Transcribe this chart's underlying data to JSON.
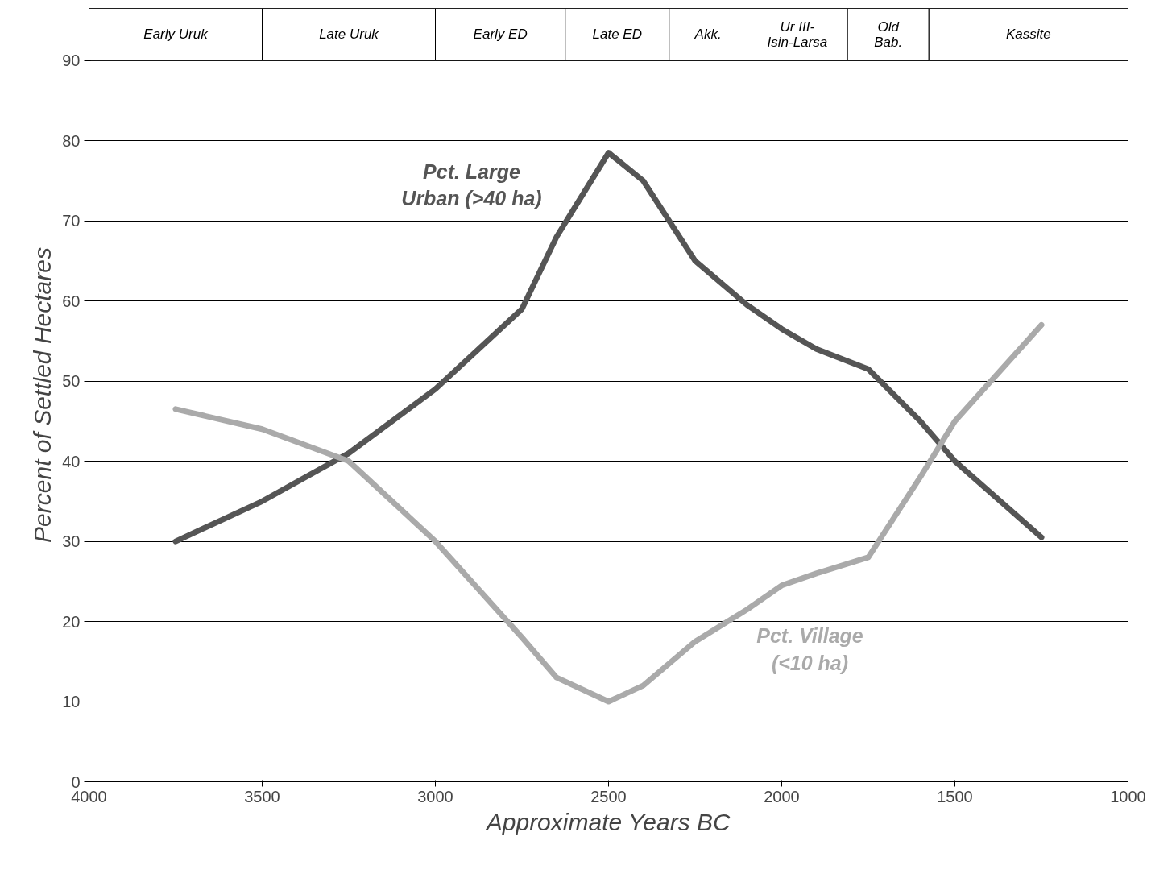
{
  "chart_data": {
    "type": "line",
    "xlabel": "Approximate Years BC",
    "ylabel": "Percent of Settled Hectares",
    "x": [
      3750,
      3500,
      3250,
      3000,
      2750,
      2650,
      2500,
      2400,
      2250,
      2100,
      2000,
      1900,
      1750,
      1600,
      1500,
      1250
    ],
    "series": [
      {
        "name": "Pct. Large\nUrban (>40 ha)",
        "color": "#555555",
        "values": [
          30,
          35,
          41,
          49,
          59,
          68,
          78.5,
          75,
          65,
          59.5,
          56.5,
          54,
          51.5,
          45,
          40,
          30.5
        ]
      },
      {
        "name": "Pct. Village\n(<10 ha)",
        "color": "#aaaaaa",
        "values": [
          46.5,
          44,
          40,
          30,
          18,
          13,
          10,
          12,
          17.5,
          21.5,
          24.5,
          26,
          28,
          38,
          45,
          57
        ]
      }
    ],
    "xlim": [
      4000,
      1000
    ],
    "xticks": [
      4000,
      3500,
      3000,
      2500,
      2000,
      1500,
      1000
    ],
    "ylim": [
      0,
      96.5
    ],
    "yticks": [
      0,
      10,
      20,
      30,
      40,
      50,
      60,
      70,
      80,
      90
    ],
    "grid": "y",
    "legend": false,
    "marker": "none",
    "line_style": "solid",
    "bands": [
      {
        "axis": "x",
        "from": 4000,
        "to": 3500,
        "label": "Early Uruk"
      },
      {
        "axis": "x",
        "from": 3500,
        "to": 3000,
        "label": "Late Uruk"
      },
      {
        "axis": "x",
        "from": 3000,
        "to": 2625,
        "label": "Early ED"
      },
      {
        "axis": "x",
        "from": 2625,
        "to": 2325,
        "label": "Late ED"
      },
      {
        "axis": "x",
        "from": 2325,
        "to": 2100,
        "label": "Akk."
      },
      {
        "axis": "x",
        "from": 2100,
        "to": 1810,
        "label": "Ur III-\nIsin-Larsa"
      },
      {
        "axis": "x",
        "from": 1810,
        "to": 1575,
        "label": "Old\nBab."
      },
      {
        "axis": "x",
        "from": 1575,
        "to": 1000,
        "label": "Kassite"
      }
    ]
  }
}
